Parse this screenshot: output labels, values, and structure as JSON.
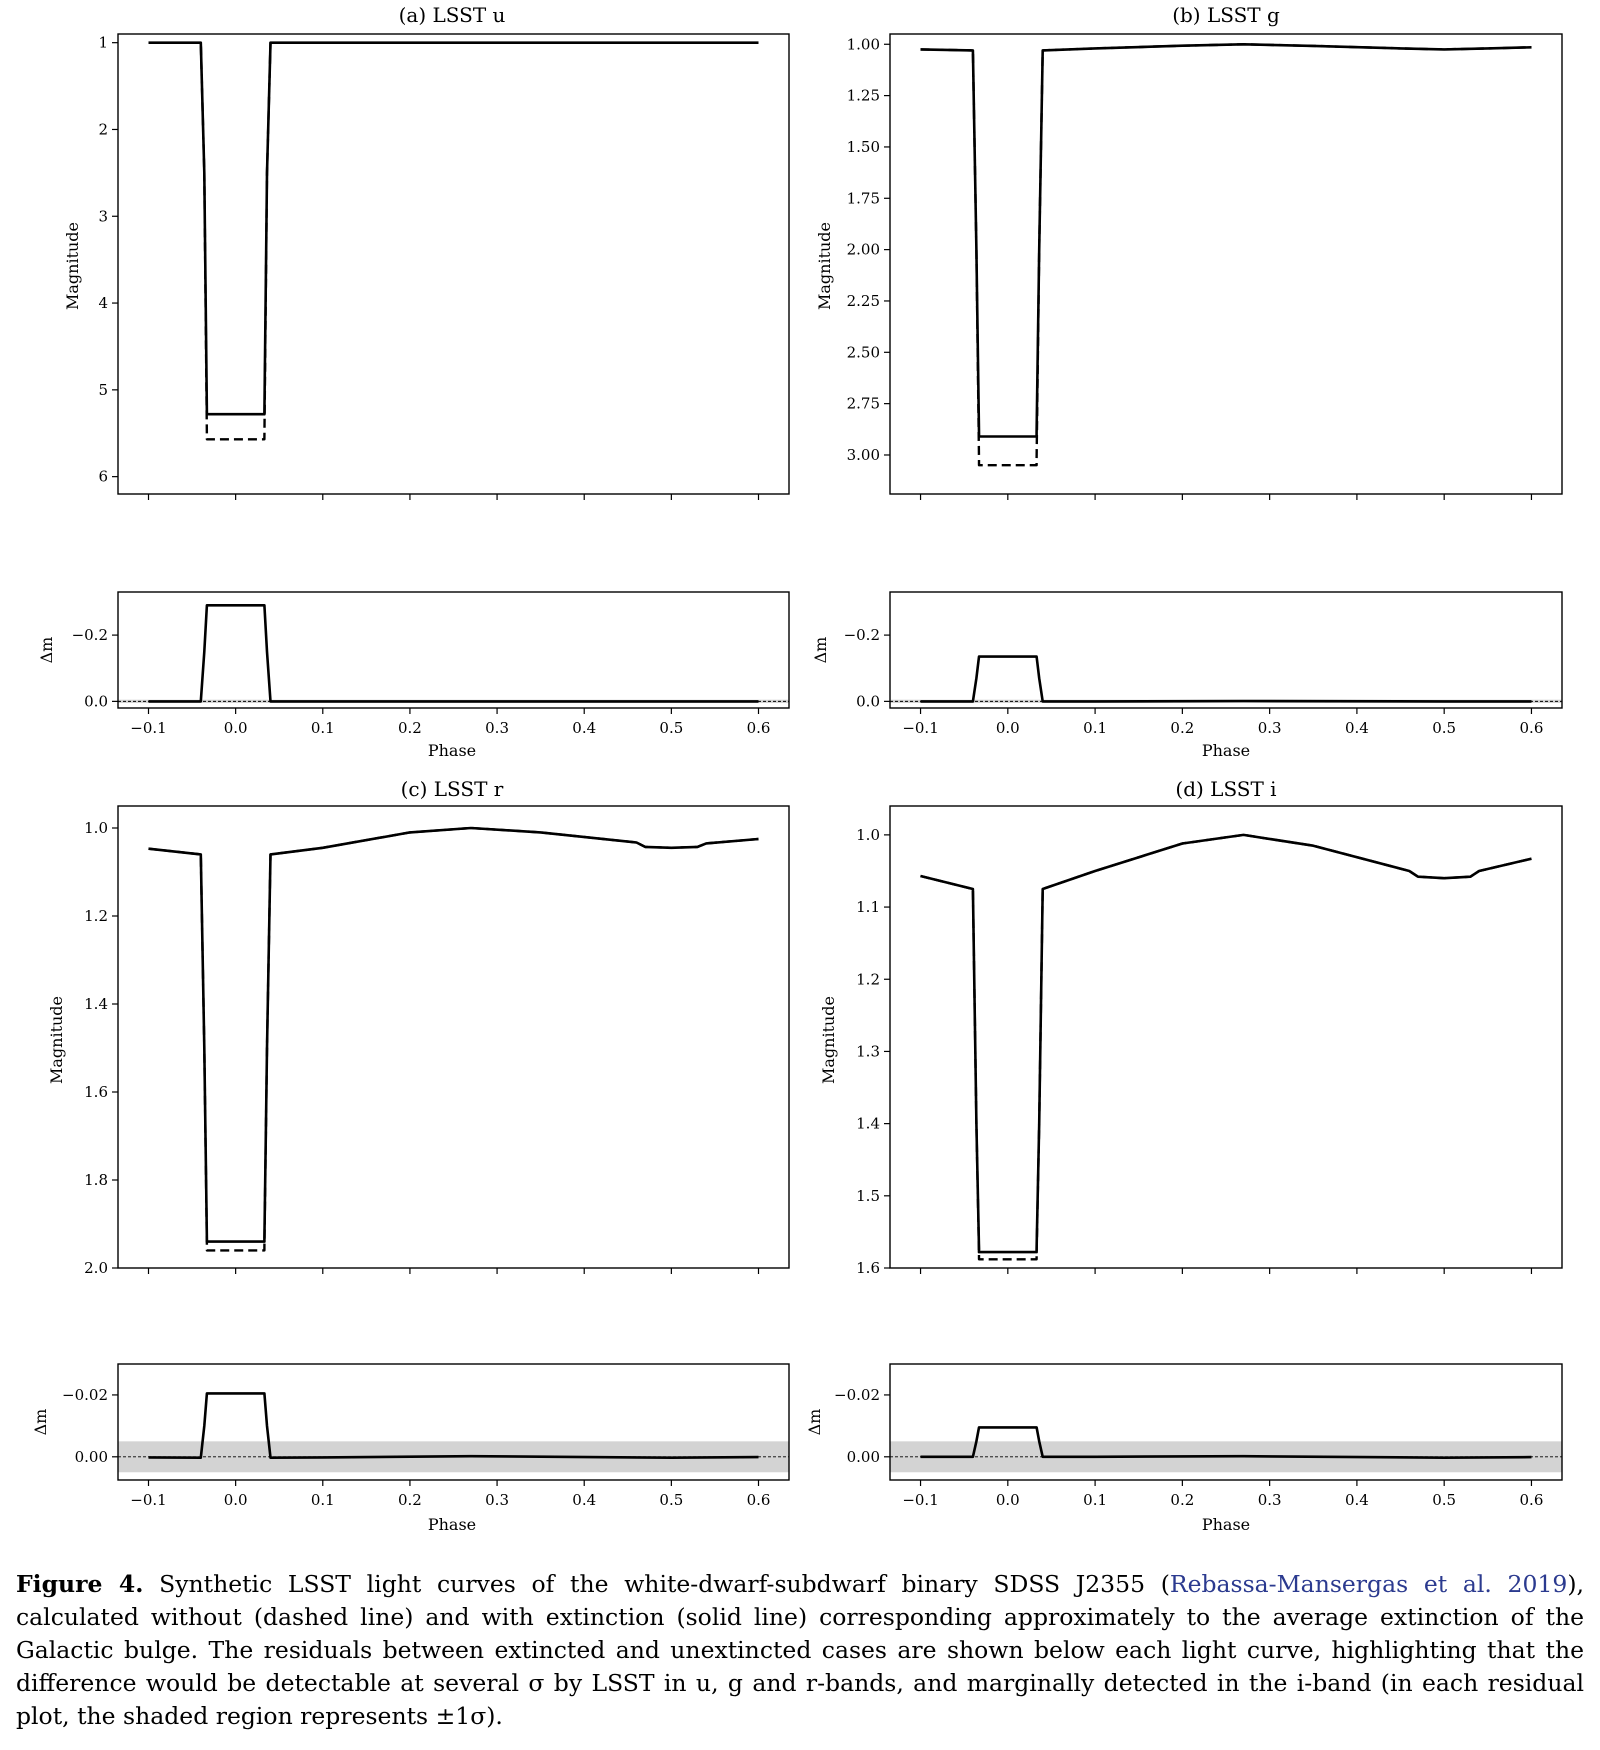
{
  "caption": {
    "label": "Figure 4.",
    "text_before": "Synthetic LSST light curves of the white-dwarf-subdwarf binary SDSS J2355 (",
    "citation": "Rebassa-Mansergas et al. 2019",
    "text_after": "), calculated without (dashed line) and with extinction (solid line) corresponding approximately to the average extinction of the Galactic bulge. The residuals between extincted and unextincted cases are shown below each light curve, highlighting that the difference would be detectable at several σ by LSST in u, g and r-bands, and marginally detected in the i-band (in each residual plot, the shaded region represents ±1σ)."
  },
  "chart_data": [
    {
      "type": "line",
      "title": "(a) LSST u",
      "xlabel": "Phase",
      "ylabel": "Magnitude",
      "residual_ylabel": "Δm",
      "xlim": [
        -0.135,
        0.635
      ],
      "xticks": [
        -0.1,
        0.0,
        0.1,
        0.2,
        0.3,
        0.4,
        0.5,
        0.6
      ],
      "xtick_labels": [
        "−0.1",
        "0.0",
        "0.1",
        "0.2",
        "0.3",
        "0.4",
        "0.5",
        "0.6"
      ],
      "ylim": [
        6.2,
        0.9
      ],
      "y_inverted": true,
      "yticks": [
        1,
        2,
        3,
        4,
        5,
        6
      ],
      "ytick_labels": [
        "1",
        "2",
        "3",
        "4",
        "5",
        "6"
      ],
      "series": [
        {
          "style": "dashed",
          "x": [
            -0.1,
            -0.04,
            -0.036,
            -0.033,
            -0.033,
            0.033,
            0.033,
            0.036,
            0.04,
            0.6
          ],
          "y": [
            1.0,
            1.0,
            2.5,
            5.55,
            5.57,
            5.57,
            5.55,
            2.5,
            1.0,
            1.0
          ]
        },
        {
          "style": "solid",
          "x": [
            -0.1,
            -0.04,
            -0.036,
            -0.033,
            -0.033,
            0.033,
            0.033,
            0.036,
            0.04,
            0.6
          ],
          "y": [
            1.0,
            1.0,
            2.5,
            5.27,
            5.28,
            5.28,
            5.27,
            2.5,
            1.0,
            1.0
          ]
        }
      ],
      "residual": {
        "ylim": [
          0.02,
          -0.33
        ],
        "yticks": [
          -0.2,
          0.0
        ],
        "ytick_labels": [
          "−0.2",
          "0.0"
        ],
        "sigma": 0.005,
        "x": [
          -0.1,
          -0.04,
          -0.036,
          -0.033,
          0.033,
          0.036,
          0.04,
          0.6
        ],
        "y": [
          0.0,
          0.0,
          -0.15,
          -0.29,
          -0.29,
          -0.15,
          0.0,
          0.0
        ]
      }
    },
    {
      "type": "line",
      "title": "(b) LSST g",
      "xlabel": "Phase",
      "ylabel": "Magnitude",
      "residual_ylabel": "Δm",
      "xlim": [
        -0.135,
        0.635
      ],
      "xticks": [
        -0.1,
        0.0,
        0.1,
        0.2,
        0.3,
        0.4,
        0.5,
        0.6
      ],
      "xtick_labels": [
        "−0.1",
        "0.0",
        "0.1",
        "0.2",
        "0.3",
        "0.4",
        "0.5",
        "0.6"
      ],
      "ylim": [
        3.19,
        0.95
      ],
      "y_inverted": true,
      "yticks": [
        1.0,
        1.25,
        1.5,
        1.75,
        2.0,
        2.25,
        2.5,
        2.75,
        3.0
      ],
      "ytick_labels": [
        "1.00",
        "1.25",
        "1.50",
        "1.75",
        "2.00",
        "2.25",
        "2.50",
        "2.75",
        "3.00"
      ],
      "series": [
        {
          "style": "dashed",
          "x": [
            -0.1,
            -0.04,
            -0.036,
            -0.033,
            -0.033,
            0.033,
            0.033,
            0.036,
            0.04,
            0.1,
            0.2,
            0.27,
            0.35,
            0.45,
            0.5,
            0.55,
            0.6
          ],
          "y": [
            1.025,
            1.03,
            2.0,
            3.02,
            3.05,
            3.05,
            3.02,
            2.0,
            1.03,
            1.02,
            1.007,
            1.0,
            1.008,
            1.02,
            1.025,
            1.02,
            1.015
          ]
        },
        {
          "style": "solid",
          "x": [
            -0.1,
            -0.04,
            -0.036,
            -0.033,
            -0.033,
            0.033,
            0.033,
            0.036,
            0.04,
            0.1,
            0.2,
            0.27,
            0.35,
            0.45,
            0.5,
            0.55,
            0.6
          ],
          "y": [
            1.025,
            1.03,
            2.0,
            2.89,
            2.91,
            2.91,
            2.89,
            2.0,
            1.03,
            1.02,
            1.007,
            1.0,
            1.008,
            1.02,
            1.025,
            1.02,
            1.015
          ]
        }
      ],
      "residual": {
        "ylim": [
          0.02,
          -0.33
        ],
        "yticks": [
          -0.2,
          0.0
        ],
        "ytick_labels": [
          "−0.2",
          "0.0"
        ],
        "sigma": 0.005,
        "x": [
          -0.1,
          -0.04,
          -0.036,
          -0.033,
          0.033,
          0.036,
          0.04,
          0.1,
          0.27,
          0.5,
          0.6
        ],
        "y": [
          0.0,
          0.0,
          -0.07,
          -0.135,
          -0.135,
          -0.07,
          0.0,
          0.0,
          -0.001,
          0.0,
          0.0
        ]
      }
    },
    {
      "type": "line",
      "title": "(c) LSST r",
      "xlabel": "Phase",
      "ylabel": "Magnitude",
      "residual_ylabel": "Δm",
      "xlim": [
        -0.135,
        0.635
      ],
      "xticks": [
        -0.1,
        0.0,
        0.1,
        0.2,
        0.3,
        0.4,
        0.5,
        0.6
      ],
      "xtick_labels": [
        "−0.1",
        "0.0",
        "0.1",
        "0.2",
        "0.3",
        "0.4",
        "0.5",
        "0.6"
      ],
      "ylim": [
        2.0,
        0.95
      ],
      "y_inverted": true,
      "yticks": [
        1.0,
        1.2,
        1.4,
        1.6,
        1.8,
        2.0
      ],
      "ytick_labels": [
        "1.0",
        "1.2",
        "1.4",
        "1.6",
        "1.8",
        "2.0"
      ],
      "series": [
        {
          "style": "dashed",
          "x": [
            -0.1,
            -0.04,
            -0.036,
            -0.033,
            -0.033,
            0.033,
            0.033,
            0.036,
            0.04,
            0.1,
            0.2,
            0.27,
            0.35,
            0.46,
            0.47,
            0.5,
            0.53,
            0.54,
            0.6
          ],
          "y": [
            1.047,
            1.06,
            1.5,
            1.95,
            1.96,
            1.96,
            1.95,
            1.5,
            1.06,
            1.045,
            1.01,
            1.0,
            1.01,
            1.033,
            1.043,
            1.045,
            1.043,
            1.035,
            1.025
          ]
        },
        {
          "style": "solid",
          "x": [
            -0.1,
            -0.04,
            -0.036,
            -0.033,
            -0.033,
            0.033,
            0.033,
            0.036,
            0.04,
            0.1,
            0.2,
            0.27,
            0.35,
            0.46,
            0.47,
            0.5,
            0.53,
            0.54,
            0.6
          ],
          "y": [
            1.047,
            1.06,
            1.5,
            1.935,
            1.94,
            1.94,
            1.935,
            1.5,
            1.06,
            1.045,
            1.01,
            1.0,
            1.01,
            1.033,
            1.043,
            1.045,
            1.043,
            1.035,
            1.025
          ]
        }
      ],
      "residual": {
        "ylim": [
          0.0075,
          -0.03
        ],
        "yticks": [
          -0.02,
          0.0
        ],
        "ytick_labels": [
          "−0.02",
          "0.00"
        ],
        "sigma": 0.005,
        "x": [
          -0.1,
          -0.04,
          -0.036,
          -0.033,
          0.033,
          0.036,
          0.04,
          0.1,
          0.27,
          0.5,
          0.6
        ],
        "y": [
          0.0002,
          0.0003,
          -0.01,
          -0.0205,
          -0.0205,
          -0.01,
          0.0003,
          0.0002,
          -0.0002,
          0.0003,
          0.0001
        ]
      }
    },
    {
      "type": "line",
      "title": "(d) LSST i",
      "xlabel": "Phase",
      "ylabel": "Magnitude",
      "residual_ylabel": "Δm",
      "xlim": [
        -0.135,
        0.635
      ],
      "xticks": [
        -0.1,
        0.0,
        0.1,
        0.2,
        0.3,
        0.4,
        0.5,
        0.6
      ],
      "xtick_labels": [
        "−0.1",
        "0.0",
        "0.1",
        "0.2",
        "0.3",
        "0.4",
        "0.5",
        "0.6"
      ],
      "ylim": [
        1.6,
        0.96
      ],
      "y_inverted": true,
      "yticks": [
        1.0,
        1.1,
        1.2,
        1.3,
        1.4,
        1.5,
        1.6
      ],
      "ytick_labels": [
        "1.0",
        "1.1",
        "1.2",
        "1.3",
        "1.4",
        "1.5",
        "1.6"
      ],
      "series": [
        {
          "style": "dashed",
          "x": [
            -0.1,
            -0.04,
            -0.036,
            -0.033,
            -0.033,
            0.033,
            0.033,
            0.036,
            0.04,
            0.1,
            0.2,
            0.27,
            0.35,
            0.46,
            0.47,
            0.5,
            0.53,
            0.54,
            0.6
          ],
          "y": [
            1.057,
            1.075,
            1.4,
            1.58,
            1.588,
            1.588,
            1.58,
            1.4,
            1.075,
            1.05,
            1.012,
            1.0,
            1.015,
            1.05,
            1.058,
            1.06,
            1.058,
            1.05,
            1.033
          ]
        },
        {
          "style": "solid",
          "x": [
            -0.1,
            -0.04,
            -0.036,
            -0.033,
            -0.033,
            0.033,
            0.033,
            0.036,
            0.04,
            0.1,
            0.2,
            0.27,
            0.35,
            0.46,
            0.47,
            0.5,
            0.53,
            0.54,
            0.6
          ],
          "y": [
            1.057,
            1.075,
            1.4,
            1.573,
            1.578,
            1.578,
            1.573,
            1.4,
            1.075,
            1.05,
            1.012,
            1.0,
            1.015,
            1.05,
            1.058,
            1.06,
            1.058,
            1.05,
            1.033
          ]
        }
      ],
      "residual": {
        "ylim": [
          0.0075,
          -0.03
        ],
        "yticks": [
          -0.02,
          0.0
        ],
        "ytick_labels": [
          "−0.02",
          "0.00"
        ],
        "sigma": 0.005,
        "x": [
          -0.1,
          -0.04,
          -0.036,
          -0.033,
          0.033,
          0.036,
          0.04,
          0.1,
          0.27,
          0.5,
          0.6
        ],
        "y": [
          0.0,
          0.0,
          -0.005,
          -0.0095,
          -0.0095,
          -0.005,
          0.0,
          0.0,
          -0.0002,
          0.0003,
          0.0001
        ]
      }
    }
  ]
}
